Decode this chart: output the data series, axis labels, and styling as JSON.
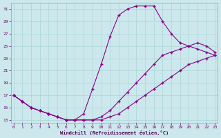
{
  "xlabel": "Windchill (Refroidissement éolien,°C)",
  "bg_color": "#cce8ec",
  "line_color": "#880088",
  "grid_color": "#aad4d8",
  "xlim": [
    0,
    23
  ],
  "ylim": [
    13,
    31
  ],
  "xticks": [
    0,
    1,
    2,
    3,
    4,
    5,
    6,
    7,
    8,
    9,
    10,
    11,
    12,
    13,
    14,
    15,
    16,
    17,
    18,
    19,
    20,
    21,
    22,
    23
  ],
  "yticks": [
    13,
    15,
    17,
    19,
    21,
    23,
    25,
    27,
    29,
    31
  ],
  "curve1_x": [
    0,
    1,
    2,
    3,
    4,
    5,
    6,
    7,
    8,
    9,
    10,
    11,
    12,
    13,
    14,
    15,
    16,
    17,
    18,
    19,
    20,
    21,
    22,
    23
  ],
  "curve1_y": [
    17,
    16,
    15,
    14.5,
    14,
    13.5,
    13,
    13,
    14,
    18,
    22,
    26.5,
    30,
    31,
    31.5,
    31.5,
    31.5,
    29,
    27,
    25.5,
    25,
    24.5,
    24,
    23.5
  ],
  "curve2_x": [
    0,
    1,
    2,
    3,
    4,
    5,
    6,
    7,
    8,
    9,
    10,
    11,
    12,
    13,
    14,
    15,
    16,
    17,
    18,
    19,
    20,
    21,
    22,
    23
  ],
  "curve2_y": [
    17,
    16,
    15,
    14.5,
    14,
    13.5,
    13,
    13,
    13,
    13,
    13.5,
    14.5,
    16,
    17.5,
    19,
    20.5,
    22,
    23.5,
    24,
    24.5,
    25,
    25.5,
    25,
    24
  ],
  "curve3_x": [
    0,
    1,
    2,
    3,
    4,
    5,
    6,
    7,
    8,
    9,
    10,
    11,
    12,
    13,
    14,
    15,
    16,
    17,
    18,
    19,
    20,
    21,
    22,
    23
  ],
  "curve3_y": [
    17,
    16,
    15,
    14.5,
    14,
    13.5,
    13,
    13,
    13,
    13,
    13,
    13.5,
    14,
    15,
    16,
    17,
    18,
    19,
    20,
    21,
    22,
    22.5,
    23,
    23.5
  ]
}
